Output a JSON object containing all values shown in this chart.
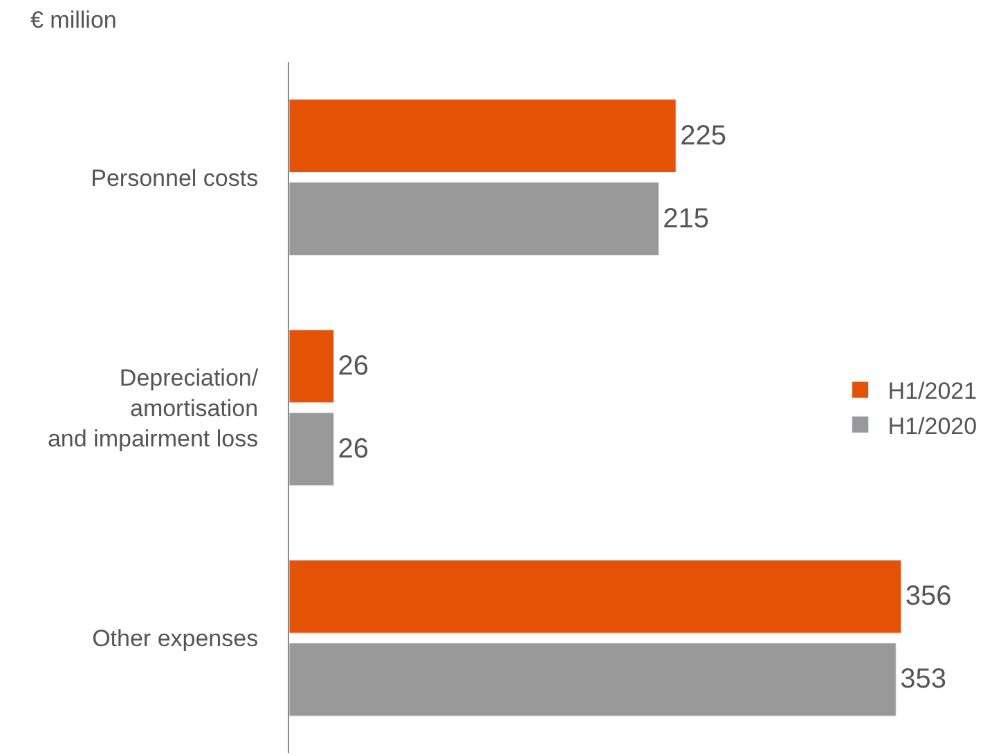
{
  "chart_data": {
    "type": "bar",
    "orientation": "horizontal",
    "categories": [
      "Personnel costs",
      "Depreciation/\namortisation\nand impairment loss",
      "Other expenses"
    ],
    "series": [
      {
        "name": "H1/2021",
        "color": "#e35205",
        "values": [
          225,
          26,
          356
        ]
      },
      {
        "name": "H1/2020",
        "color": "#999999",
        "values": [
          215,
          26,
          353
        ]
      }
    ],
    "data_labels": true,
    "legend": "right",
    "annotations": [
      "€ million"
    ]
  }
}
